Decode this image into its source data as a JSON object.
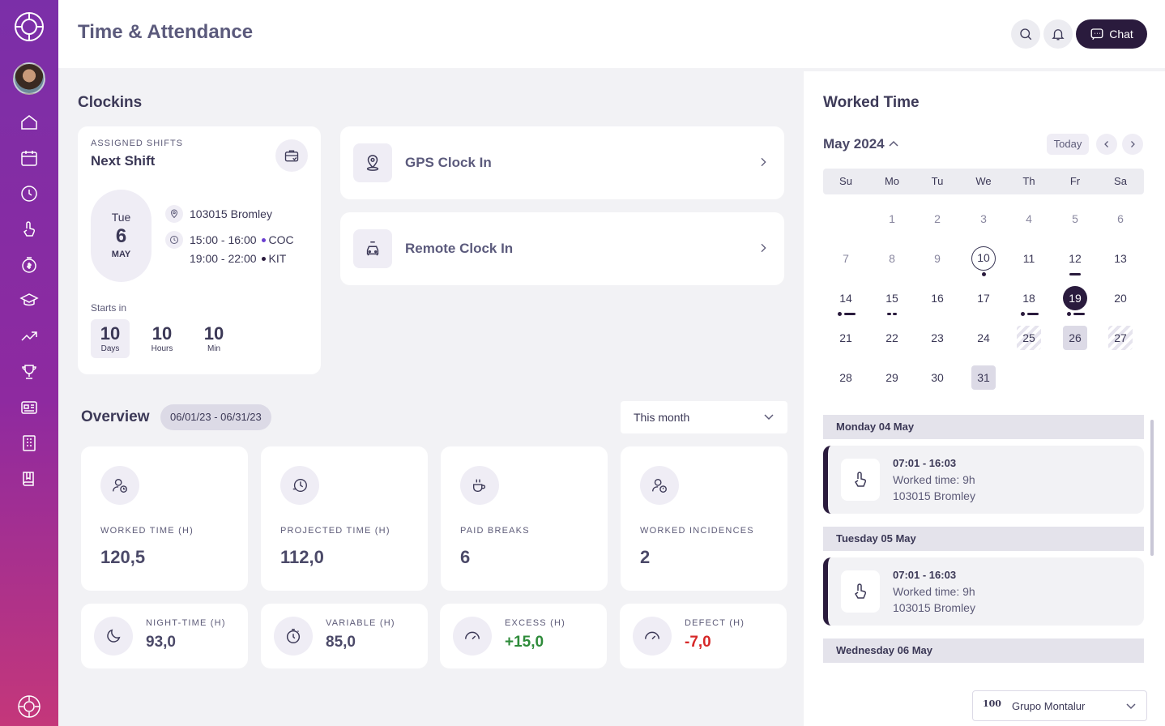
{
  "app": {
    "title": "Time & Attendance"
  },
  "header": {
    "chat_label": "Chat",
    "search_icon": "search-icon",
    "bell_icon": "bell-icon"
  },
  "sidebar": {
    "items": [
      {
        "name": "home-icon"
      },
      {
        "name": "calendar-icon"
      },
      {
        "name": "history-icon"
      },
      {
        "name": "touch-icon"
      },
      {
        "name": "money-icon"
      },
      {
        "name": "graduation-icon"
      },
      {
        "name": "trending-icon"
      },
      {
        "name": "trophy-icon"
      },
      {
        "name": "news-icon"
      },
      {
        "name": "building-icon"
      },
      {
        "name": "book-icon"
      }
    ]
  },
  "clockins": {
    "title": "Clockins",
    "shift": {
      "label": "ASSIGNED SHIFTS",
      "title": "Next Shift",
      "dow": "Tue",
      "day": "6",
      "month": "MAY",
      "location": "103015 Bromley",
      "time1": "15:00 - 16:00",
      "tag1": "COC",
      "time2": "19:00 - 22:00",
      "tag2": "KIT",
      "starts_label": "Starts in",
      "countdown": [
        {
          "value": "10",
          "unit": "Days"
        },
        {
          "value": "10",
          "unit": "Hours"
        },
        {
          "value": "10",
          "unit": "Min"
        }
      ]
    },
    "gps_label": "GPS Clock In",
    "remote_label": "Remote Clock In"
  },
  "overview": {
    "title": "Overview",
    "range": "06/01/23 - 06/31/23",
    "period": "This month",
    "stats": [
      {
        "label": "WORKED TIME (H)",
        "value": "120,5"
      },
      {
        "label": "PROJECTED TIME (H)",
        "value": "112,0"
      },
      {
        "label": "PAID BREAKS",
        "value": "6"
      },
      {
        "label": "WORKED INCIDENCES",
        "value": "2"
      }
    ],
    "small_stats": [
      {
        "label": "NIGHT-TIME (H)",
        "value": "93,0"
      },
      {
        "label": "VARIABLE (H)",
        "value": "85,0"
      },
      {
        "label": "EXCESS (H)",
        "value": "+15,0",
        "color": "#2e8b3a"
      },
      {
        "label": "DEFECT (H)",
        "value": "-7,0",
        "color": "#d62828"
      }
    ]
  },
  "worked_time": {
    "title": "Worked Time",
    "month": "May 2024",
    "today_label": "Today",
    "weekdays": [
      "Su",
      "Mo",
      "Tu",
      "We",
      "Th",
      "Fr",
      "Sa"
    ],
    "days": [
      "1",
      "2",
      "3",
      "4",
      "5",
      "6",
      "7",
      "8",
      "9",
      "10",
      "11",
      "12",
      "13",
      "14",
      "15",
      "16",
      "17",
      "18",
      "19",
      "20",
      "21",
      "22",
      "23",
      "24",
      "25",
      "26",
      "27",
      "28",
      "29",
      "30",
      "31"
    ],
    "entries": [
      {
        "date": "Monday 04 May",
        "time": "07:01 - 16:03",
        "worked": "Worked time: 9h",
        "location": "103015 Bromley"
      },
      {
        "date": "Tuesday 05 May",
        "time": "07:01 - 16:03",
        "worked": "Worked time: 9h",
        "location": "103015 Bromley"
      },
      {
        "date": "Wednesday 06 May"
      }
    ]
  },
  "company": {
    "logo_text": "100",
    "name": "Grupo Montalur"
  },
  "colors": {
    "accent": "#2a1b3d",
    "sidebar_top": "#7b2fa8",
    "sidebar_bottom": "#c4377a",
    "positive": "#2e8b3a",
    "negative": "#d62828"
  }
}
